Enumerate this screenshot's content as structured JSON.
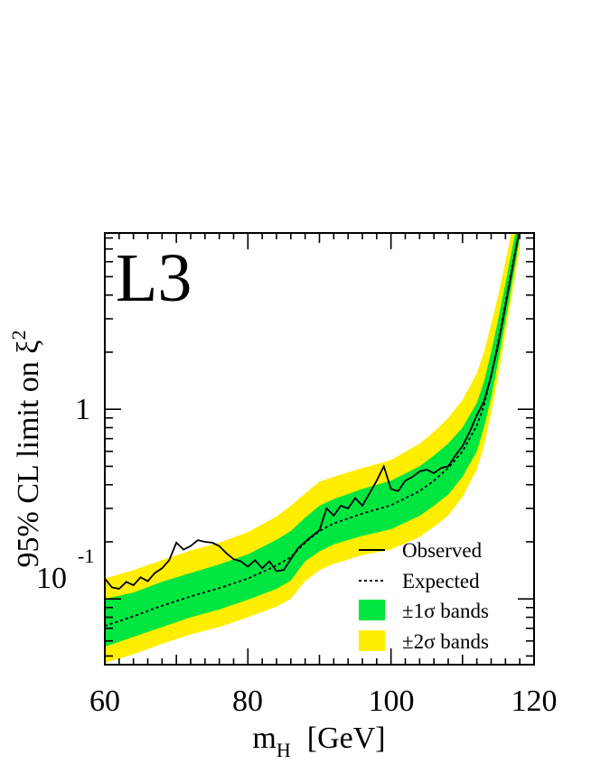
{
  "chart_data": {
    "type": "line",
    "experiment_label": "L3",
    "xlabel_main": "m",
    "xlabel_sub": "H",
    "xlabel_unit": "[GeV]",
    "ylabel_main": "95% CL limit on ξ",
    "ylabel_sup": "2",
    "xlim": [
      60,
      120
    ],
    "ylim": [
      0.045,
      8.5
    ],
    "yscale": "log",
    "x_ticks": [
      "60",
      "80",
      "100",
      "120"
    ],
    "y_tick_one": "1",
    "y_tick_ten": "10",
    "y_tick_exp": "-1",
    "legend": {
      "placement": "bottom-right",
      "observed": "Observed",
      "expected": "Expected",
      "band1": "±1σ bands",
      "band2": "±2σ bands"
    },
    "colors": {
      "band1": "#00e640",
      "band2": "#ffee00",
      "line": "#000000"
    },
    "expected": {
      "x": [
        60,
        64,
        68,
        72,
        76,
        80,
        84,
        86,
        88,
        90,
        92,
        96,
        100,
        104,
        106,
        108,
        110,
        112,
        113,
        114,
        115,
        116,
        117,
        118
      ],
      "y": [
        0.072,
        0.081,
        0.092,
        0.103,
        0.114,
        0.128,
        0.15,
        0.166,
        0.198,
        0.228,
        0.25,
        0.282,
        0.312,
        0.37,
        0.42,
        0.49,
        0.6,
        0.82,
        1.05,
        1.5,
        2.3,
        3.6,
        5.8,
        9.0
      ]
    },
    "band1": {
      "x": [
        60,
        64,
        68,
        72,
        76,
        80,
        84,
        86,
        88,
        90,
        92,
        96,
        100,
        104,
        106,
        108,
        110,
        112,
        113,
        114,
        115,
        116,
        117,
        118
      ],
      "lower": [
        0.056,
        0.063,
        0.071,
        0.08,
        0.088,
        0.099,
        0.113,
        0.125,
        0.158,
        0.178,
        0.194,
        0.215,
        0.233,
        0.274,
        0.31,
        0.355,
        0.44,
        0.6,
        0.8,
        1.15,
        1.8,
        2.9,
        4.8,
        8.0
      ],
      "upper": [
        0.1,
        0.108,
        0.123,
        0.137,
        0.152,
        0.172,
        0.205,
        0.228,
        0.268,
        0.31,
        0.336,
        0.38,
        0.42,
        0.5,
        0.57,
        0.66,
        0.8,
        1.08,
        1.4,
        2.0,
        3.0,
        4.6,
        7.2,
        11.0
      ]
    },
    "band2": {
      "x": [
        60,
        64,
        68,
        72,
        76,
        80,
        84,
        86,
        88,
        90,
        92,
        96,
        100,
        104,
        106,
        108,
        110,
        112,
        113,
        114,
        115,
        116,
        117,
        118
      ],
      "lower": [
        0.046,
        0.051,
        0.058,
        0.065,
        0.071,
        0.08,
        0.091,
        0.1,
        0.124,
        0.142,
        0.153,
        0.17,
        0.182,
        0.212,
        0.24,
        0.275,
        0.345,
        0.48,
        0.64,
        0.95,
        1.5,
        2.5,
        4.2,
        7.0
      ],
      "upper": [
        0.128,
        0.142,
        0.16,
        0.18,
        0.198,
        0.225,
        0.272,
        0.31,
        0.36,
        0.415,
        0.44,
        0.49,
        0.54,
        0.66,
        0.76,
        0.9,
        1.12,
        1.55,
        2.0,
        2.8,
        4.0,
        6.0,
        9.2,
        13.5
      ]
    },
    "observed": {
      "x": [
        60,
        61,
        62,
        63,
        64,
        65,
        66,
        67,
        68,
        69,
        70,
        71,
        72,
        73,
        74,
        75,
        76,
        77,
        78,
        79,
        80,
        81,
        82,
        83,
        84,
        85,
        86,
        87,
        88,
        89,
        90,
        91,
        92,
        93,
        94,
        95,
        96,
        97,
        98,
        99,
        100,
        101,
        102,
        103,
        104,
        105,
        106,
        107,
        108,
        109,
        110,
        111,
        112,
        113,
        114,
        115,
        116,
        117,
        118
      ],
      "y": [
        0.128,
        0.115,
        0.113,
        0.123,
        0.118,
        0.13,
        0.124,
        0.137,
        0.145,
        0.16,
        0.198,
        0.182,
        0.19,
        0.204,
        0.2,
        0.198,
        0.19,
        0.174,
        0.162,
        0.158,
        0.148,
        0.16,
        0.145,
        0.158,
        0.14,
        0.142,
        0.162,
        0.185,
        0.2,
        0.215,
        0.23,
        0.3,
        0.275,
        0.31,
        0.3,
        0.34,
        0.31,
        0.36,
        0.42,
        0.5,
        0.38,
        0.37,
        0.42,
        0.44,
        0.47,
        0.48,
        0.46,
        0.49,
        0.5,
        0.57,
        0.64,
        0.76,
        0.93,
        1.1,
        1.5,
        2.2,
        3.5,
        5.6,
        9.0
      ]
    }
  }
}
